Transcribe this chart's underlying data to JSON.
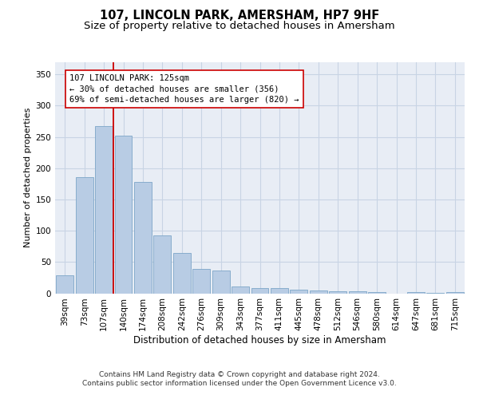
{
  "title1": "107, LINCOLN PARK, AMERSHAM, HP7 9HF",
  "title2": "Size of property relative to detached houses in Amersham",
  "xlabel": "Distribution of detached houses by size in Amersham",
  "ylabel": "Number of detached properties",
  "categories": [
    "39sqm",
    "73sqm",
    "107sqm",
    "140sqm",
    "174sqm",
    "208sqm",
    "242sqm",
    "276sqm",
    "309sqm",
    "343sqm",
    "377sqm",
    "411sqm",
    "445sqm",
    "478sqm",
    "512sqm",
    "546sqm",
    "580sqm",
    "614sqm",
    "647sqm",
    "681sqm",
    "715sqm"
  ],
  "values": [
    29,
    186,
    267,
    252,
    178,
    93,
    64,
    39,
    37,
    11,
    8,
    8,
    6,
    4,
    3,
    3,
    2,
    0,
    2,
    1,
    2
  ],
  "bar_color": "#b8cce4",
  "bar_edge_color": "#7da6c8",
  "vline_index": 2,
  "vline_color": "#cc0000",
  "annotation_line1": "107 LINCOLN PARK: 125sqm",
  "annotation_line2": "← 30% of detached houses are smaller (356)",
  "annotation_line3": "69% of semi-detached houses are larger (820) →",
  "annotation_box_facecolor": "#ffffff",
  "annotation_box_edgecolor": "#cc0000",
  "ylim": [
    0,
    370
  ],
  "yticks": [
    0,
    50,
    100,
    150,
    200,
    250,
    300,
    350
  ],
  "grid_color": "#c8d4e4",
  "background_color": "#e8edf5",
  "footer_line1": "Contains HM Land Registry data © Crown copyright and database right 2024.",
  "footer_line2": "Contains public sector information licensed under the Open Government Licence v3.0.",
  "title1_fontsize": 10.5,
  "title2_fontsize": 9.5,
  "xlabel_fontsize": 8.5,
  "ylabel_fontsize": 8,
  "tick_fontsize": 7.5,
  "annotation_fontsize": 7.5,
  "footer_fontsize": 6.5
}
